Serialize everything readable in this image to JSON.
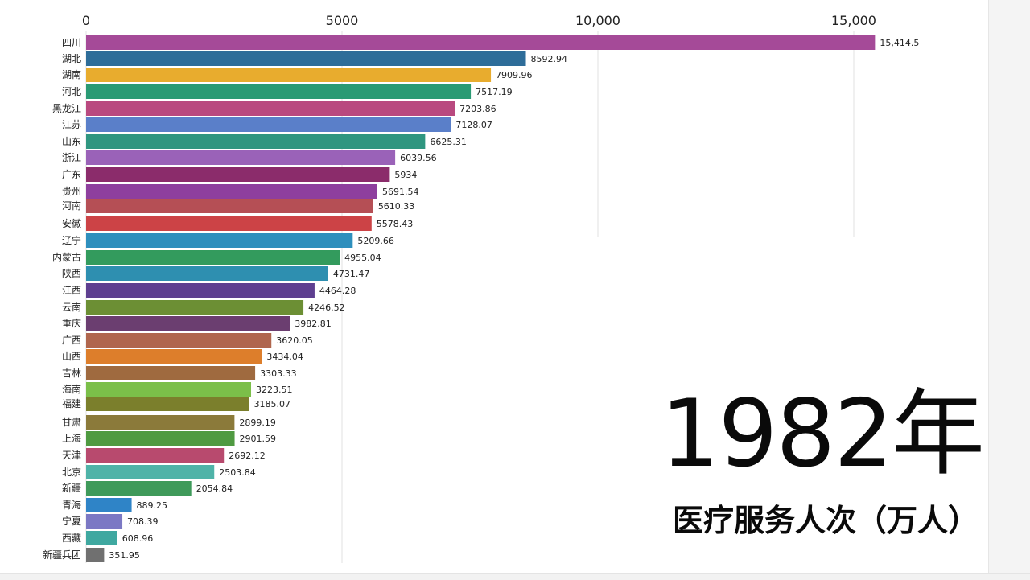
{
  "overlay": {
    "year": "1982年",
    "metric": "医疗服务人次（万人）"
  },
  "chart_data": {
    "type": "bar",
    "orientation": "horizontal",
    "title": "",
    "xlabel": "",
    "ylabel": "",
    "xlim": [
      0,
      17000
    ],
    "x_ticks": [
      0,
      5000,
      10000,
      15000
    ],
    "x_tick_labels": [
      "0",
      "5000",
      "10,000",
      "15,000"
    ],
    "grid": true,
    "categories": [
      "四川",
      "湖北",
      "湖南",
      "河北",
      "黑龙江",
      "江苏",
      "山东",
      "浙江",
      "广东",
      "贵州",
      "河南",
      "安徽",
      "辽宁",
      "内蒙古",
      "陕西",
      "江西",
      "云南",
      "重庆",
      "广西",
      "山西",
      "吉林",
      "海南",
      "福建",
      "甘肃",
      "上海",
      "天津",
      "北京",
      "新疆",
      "青海",
      "宁夏",
      "西藏",
      "新疆兵团"
    ],
    "values": [
      15414.5,
      8592.94,
      7909.96,
      7517.19,
      7203.86,
      7128.07,
      6625.31,
      6039.56,
      5934,
      5691.54,
      5610.33,
      5578.43,
      5209.66,
      4955.04,
      4731.47,
      4464.28,
      4246.52,
      3982.81,
      3620.05,
      3434.04,
      3303.33,
      3223.51,
      3185.07,
      2899.19,
      2901.59,
      2692.12,
      2503.84,
      2054.84,
      889.25,
      708.39,
      608.96,
      351.95
    ],
    "value_labels": [
      "15,414.5",
      "8592.94",
      "7909.96",
      "7517.19",
      "7203.86",
      "7128.07",
      "6625.31",
      "6039.56",
      "5934",
      "5691.54",
      "5610.33",
      "5578.43",
      "5209.66",
      "4955.04",
      "4731.47",
      "4464.28",
      "4246.52",
      "3982.81",
      "3620.05",
      "3434.04",
      "3303.33",
      "3223.51",
      "3185.07",
      "2899.19",
      "2901.59",
      "2692.12",
      "2503.84",
      "2054.84",
      "889.25",
      "708.39",
      "608.96",
      "351.95"
    ],
    "colors": [
      "#a54a98",
      "#2e6d99",
      "#e8ac2e",
      "#2a9a74",
      "#b9497f",
      "#5a7fc9",
      "#2f9680",
      "#9a62b8",
      "#8b2c6b",
      "#8e3f9e",
      "#b54f55",
      "#cc4346",
      "#2e8fbd",
      "#339b5d",
      "#2e8fb0",
      "#5e3f90",
      "#6c8f34",
      "#6b3e70",
      "#b0664d",
      "#dd7e2b",
      "#9f6a3f",
      "#7bbf49",
      "#7b7f2c",
      "#8b7a3a",
      "#4f9a41",
      "#b84a6e",
      "#4fb3a8",
      "#3f9a5a",
      "#2f84c7",
      "#7b78c4",
      "#3fa8a0",
      "#707070"
    ]
  }
}
